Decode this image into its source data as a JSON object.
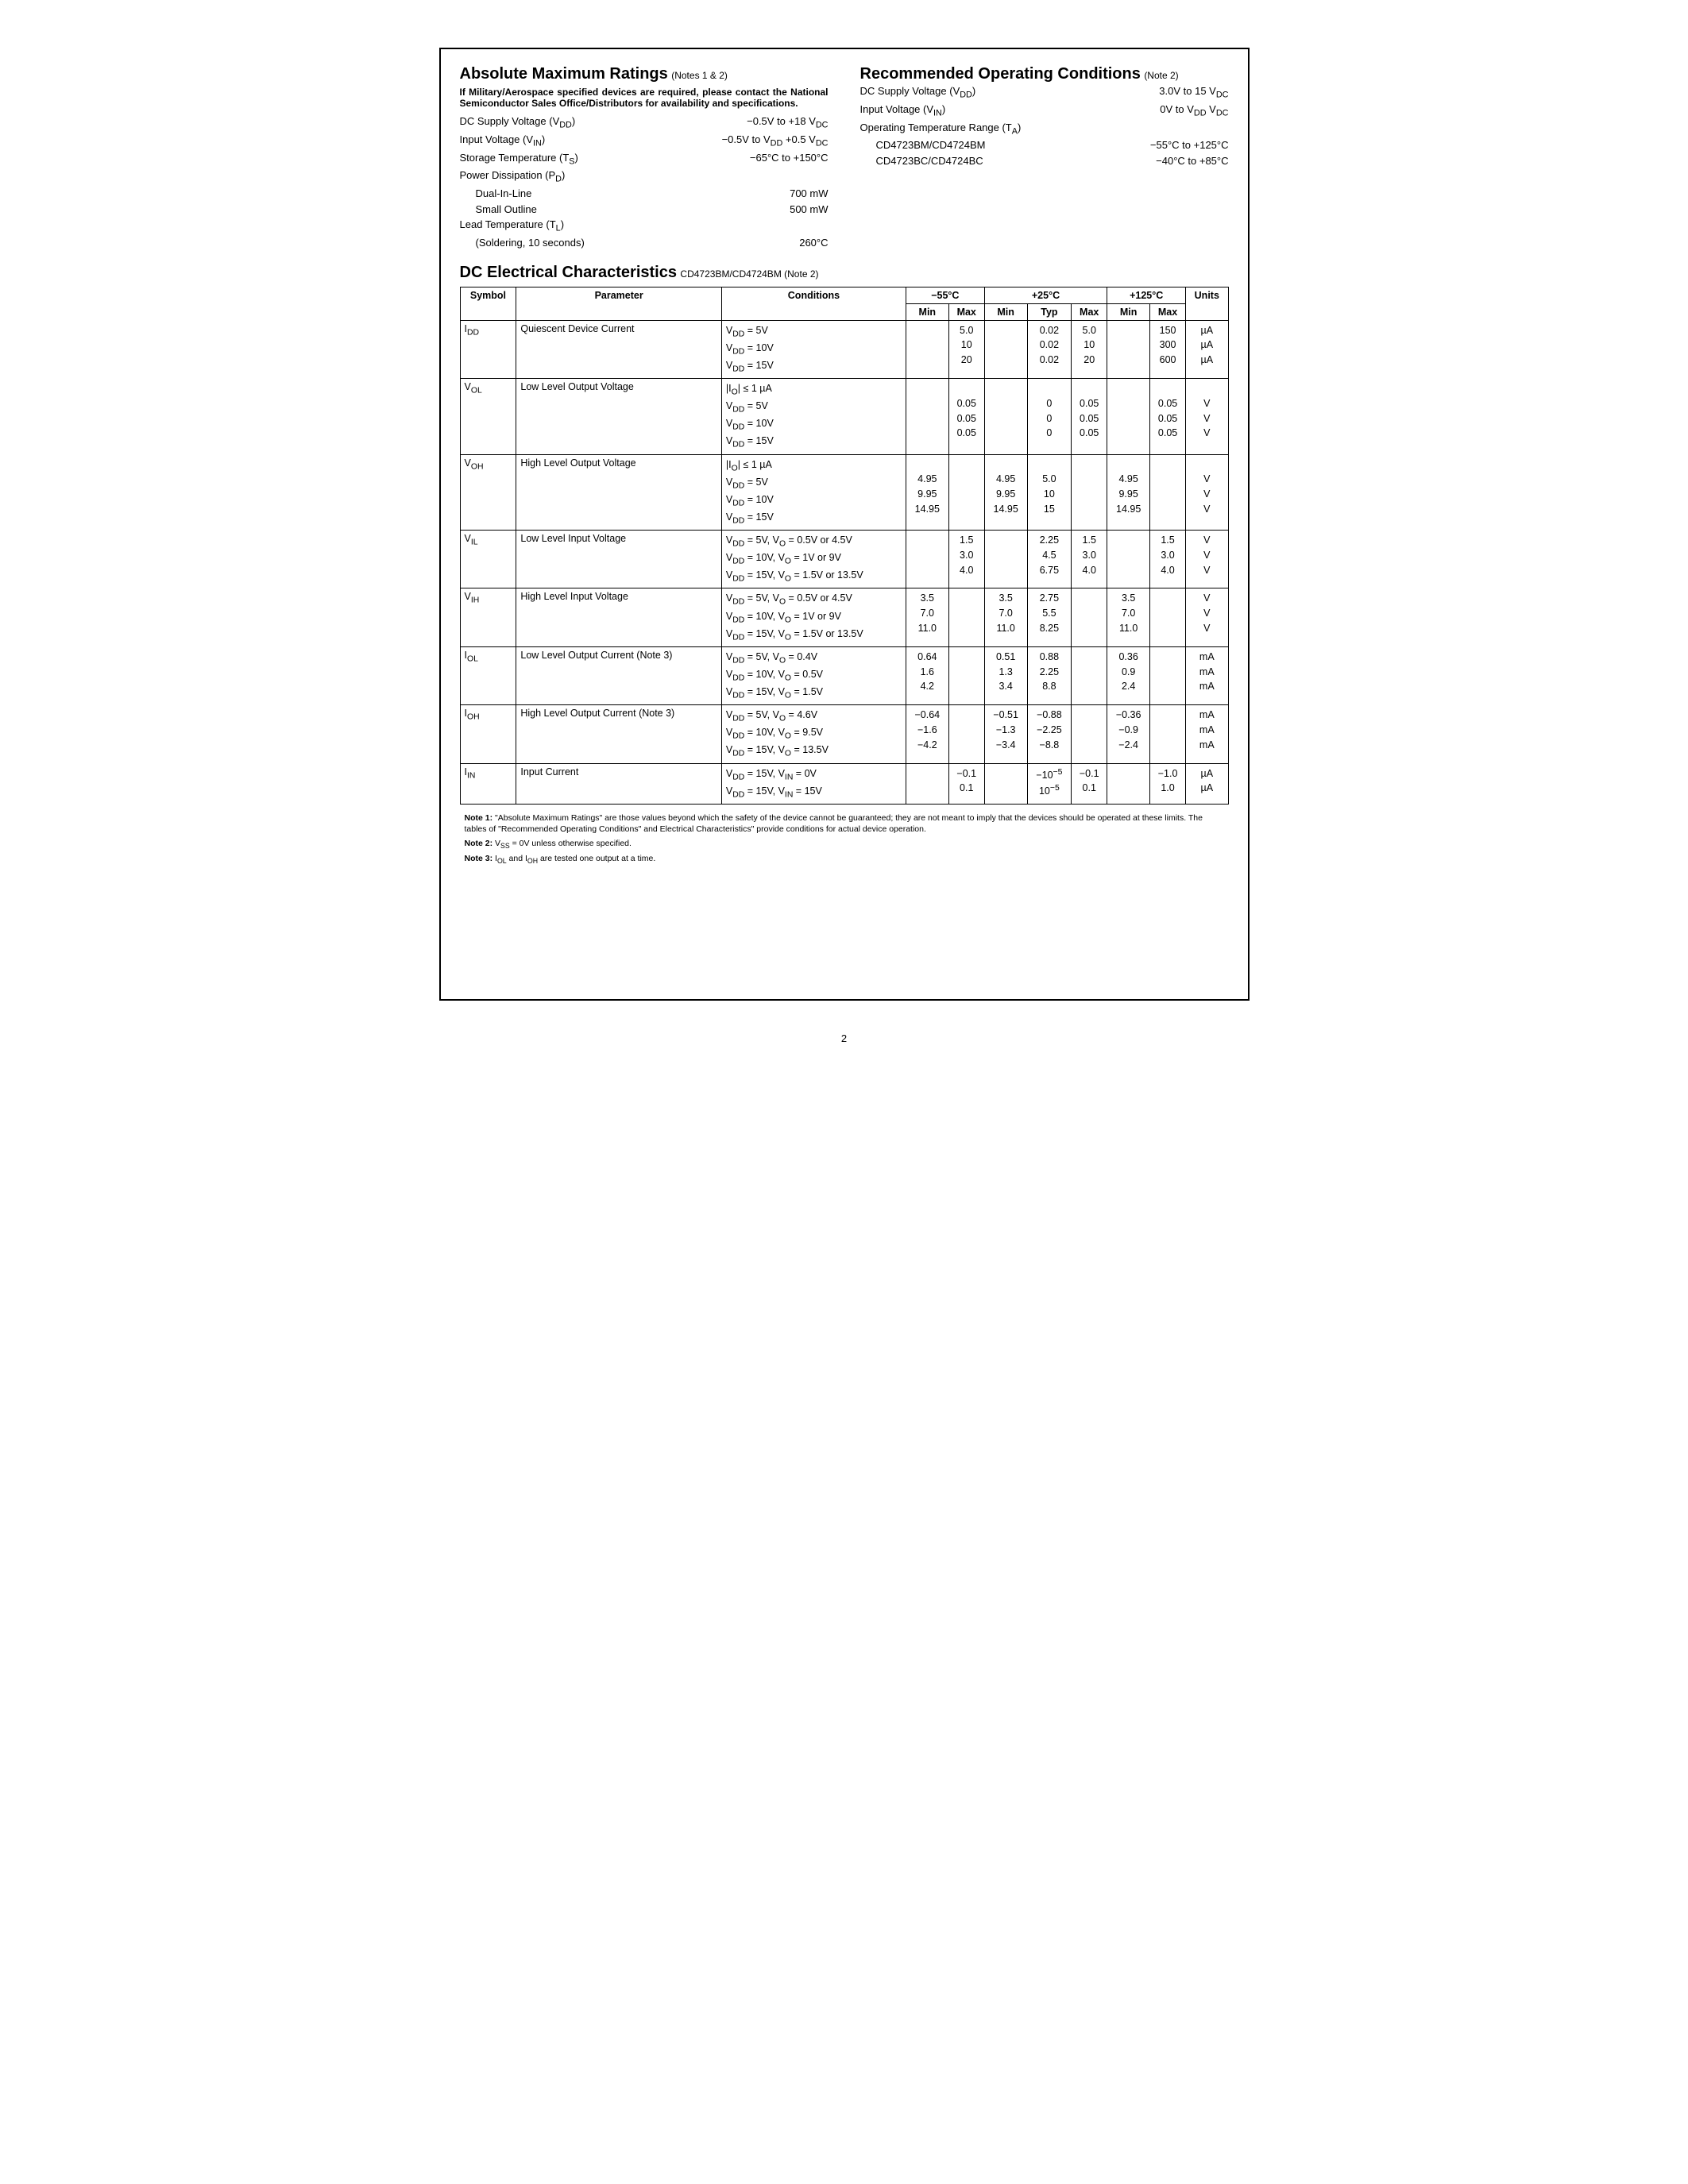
{
  "abs": {
    "title": "Absolute Maximum Ratings",
    "notesRef": "(Notes 1 & 2)",
    "boldNote": "If Military/Aerospace specified devices are required, please contact the National Semiconductor Sales Office/Distributors for availability and specifications.",
    "rows": [
      {
        "label": "DC Supply Voltage (V<sub>DD</sub>)",
        "value": "−0.5V to +18 V<sub>DC</sub>"
      },
      {
        "label": "Input Voltage (V<sub>IN</sub>)",
        "value": "−0.5V to V<sub>DD</sub> +0.5 V<sub>DC</sub>"
      },
      {
        "label": "Storage Temperature (T<sub>S</sub>)",
        "value": "−65°C to +150°C"
      },
      {
        "label": "Power Dissipation (P<sub>D</sub>)",
        "value": ""
      },
      {
        "label": "Dual-In-Line",
        "value": "700 mW",
        "indent": true
      },
      {
        "label": "Small Outline",
        "value": "500 mW",
        "indent": true
      },
      {
        "label": "Lead Temperature (T<sub>L</sub>)",
        "value": ""
      },
      {
        "label": "(Soldering, 10 seconds)",
        "value": "260°C",
        "indent": true
      }
    ]
  },
  "rec": {
    "title": "Recommended Operating Conditions",
    "notesRef": "(Note 2)",
    "rows": [
      {
        "label": "DC Supply Voltage (V<sub>DD</sub>)",
        "value": "3.0V to 15 V<sub>DC</sub>"
      },
      {
        "label": "Input Voltage (V<sub>IN</sub>)",
        "value": "0V to V<sub>DD</sub> V<sub>DC</sub>"
      },
      {
        "label": "Operating Temperature Range (T<sub>A</sub>)",
        "value": ""
      },
      {
        "label": "CD4723BM/CD4724BM",
        "value": "−55°C to +125°C",
        "indent": true
      },
      {
        "label": "CD4723BC/CD4724BC",
        "value": "−40°C to +85°C",
        "indent": true
      }
    ]
  },
  "dc": {
    "title": "DC Electrical Characteristics",
    "sub": "CD4723BM/CD4724BM (Note 2)",
    "tempHeaders": [
      "−55°C",
      "+25°C",
      "+125°C"
    ],
    "colHeaders": [
      "Symbol",
      "Parameter",
      "Conditions",
      "Min",
      "Max",
      "Min",
      "Typ",
      "Max",
      "Min",
      "Max",
      "Units"
    ],
    "rows": [
      {
        "symbol": "I<sub>DD</sub>",
        "param": "Quiescent Device Current",
        "cond": [
          "V<sub>DD</sub> = 5V",
          "V<sub>DD</sub> = 10V",
          "V<sub>DD</sub> = 15V"
        ],
        "c55min": [
          "",
          "",
          ""
        ],
        "c55max": [
          "5.0",
          "10",
          "20"
        ],
        "c25min": [
          "",
          "",
          ""
        ],
        "c25typ": [
          "0.02",
          "0.02",
          "0.02"
        ],
        "c25max": [
          "5.0",
          "10",
          "20"
        ],
        "c125min": [
          "",
          "",
          ""
        ],
        "c125max": [
          "150",
          "300",
          "600"
        ],
        "units": [
          "µA",
          "µA",
          "µA"
        ]
      },
      {
        "symbol": "V<sub>OL</sub>",
        "param": "Low Level Output Voltage",
        "cond": [
          "|I<sub>O</sub>| ≤ 1 µA",
          "V<sub>DD</sub> = 5V",
          "V<sub>DD</sub> = 10V",
          "V<sub>DD</sub> = 15V"
        ],
        "c55min": [
          "",
          "",
          "",
          ""
        ],
        "c55max": [
          "",
          "0.05",
          "0.05",
          "0.05"
        ],
        "c25min": [
          "",
          "",
          "",
          ""
        ],
        "c25typ": [
          "",
          "0",
          "0",
          "0"
        ],
        "c25max": [
          "",
          "0.05",
          "0.05",
          "0.05"
        ],
        "c125min": [
          "",
          "",
          "",
          ""
        ],
        "c125max": [
          "",
          "0.05",
          "0.05",
          "0.05"
        ],
        "units": [
          "",
          "V",
          "V",
          "V"
        ]
      },
      {
        "symbol": "V<sub>OH</sub>",
        "param": "High Level Output Voltage",
        "cond": [
          "|I<sub>O</sub>| ≤ 1 µA",
          "V<sub>DD</sub> = 5V",
          "V<sub>DD</sub> = 10V",
          "V<sub>DD</sub> = 15V"
        ],
        "c55min": [
          "",
          "4.95",
          "9.95",
          "14.95"
        ],
        "c55max": [
          "",
          "",
          "",
          ""
        ],
        "c25min": [
          "",
          "4.95",
          "9.95",
          "14.95"
        ],
        "c25typ": [
          "",
          "5.0",
          "10",
          "15"
        ],
        "c25max": [
          "",
          "",
          "",
          ""
        ],
        "c125min": [
          "",
          "4.95",
          "9.95",
          "14.95"
        ],
        "c125max": [
          "",
          "",
          "",
          ""
        ],
        "units": [
          "",
          "V",
          "V",
          "V"
        ]
      },
      {
        "symbol": "V<sub>IL</sub>",
        "param": "Low Level Input Voltage",
        "cond": [
          "V<sub>DD</sub> = 5V, V<sub>O</sub> = 0.5V or 4.5V",
          "V<sub>DD</sub> = 10V, V<sub>O</sub> = 1V or 9V",
          "V<sub>DD</sub> = 15V, V<sub>O</sub> = 1.5V or 13.5V"
        ],
        "c55min": [
          "",
          "",
          ""
        ],
        "c55max": [
          "1.5",
          "3.0",
          "4.0"
        ],
        "c25min": [
          "",
          "",
          ""
        ],
        "c25typ": [
          "2.25",
          "4.5",
          "6.75"
        ],
        "c25max": [
          "1.5",
          "3.0",
          "4.0"
        ],
        "c125min": [
          "",
          "",
          ""
        ],
        "c125max": [
          "1.5",
          "3.0",
          "4.0"
        ],
        "units": [
          "V",
          "V",
          "V"
        ]
      },
      {
        "symbol": "V<sub>IH</sub>",
        "param": "High Level Input Voltage",
        "cond": [
          "V<sub>DD</sub> = 5V, V<sub>O</sub> = 0.5V or 4.5V",
          "V<sub>DD</sub> = 10V, V<sub>O</sub> = 1V or 9V",
          "V<sub>DD</sub> = 15V, V<sub>O</sub> = 1.5V or 13.5V"
        ],
        "c55min": [
          "3.5",
          "7.0",
          "11.0"
        ],
        "c55max": [
          "",
          "",
          ""
        ],
        "c25min": [
          "3.5",
          "7.0",
          "11.0"
        ],
        "c25typ": [
          "2.75",
          "5.5",
          "8.25"
        ],
        "c25max": [
          "",
          "",
          ""
        ],
        "c125min": [
          "3.5",
          "7.0",
          "11.0"
        ],
        "c125max": [
          "",
          "",
          ""
        ],
        "units": [
          "V",
          "V",
          "V"
        ]
      },
      {
        "symbol": "I<sub>OL</sub>",
        "param": "Low Level Output Current (Note 3)",
        "cond": [
          "V<sub>DD</sub> = 5V, V<sub>O</sub> = 0.4V",
          "V<sub>DD</sub> = 10V, V<sub>O</sub> = 0.5V",
          "V<sub>DD</sub> = 15V, V<sub>O</sub> = 1.5V"
        ],
        "c55min": [
          "0.64",
          "1.6",
          "4.2"
        ],
        "c55max": [
          "",
          "",
          ""
        ],
        "c25min": [
          "0.51",
          "1.3",
          "3.4"
        ],
        "c25typ": [
          "0.88",
          "2.25",
          "8.8"
        ],
        "c25max": [
          "",
          "",
          ""
        ],
        "c125min": [
          "0.36",
          "0.9",
          "2.4"
        ],
        "c125max": [
          "",
          "",
          ""
        ],
        "units": [
          "mA",
          "mA",
          "mA"
        ]
      },
      {
        "symbol": "I<sub>OH</sub>",
        "param": "High Level Output Current (Note 3)",
        "cond": [
          "V<sub>DD</sub> = 5V, V<sub>O</sub> = 4.6V",
          "V<sub>DD</sub> = 10V, V<sub>O</sub> = 9.5V",
          "V<sub>DD</sub> = 15V, V<sub>O</sub> = 13.5V"
        ],
        "c55min": [
          "−0.64",
          "−1.6",
          "−4.2"
        ],
        "c55max": [
          "",
          "",
          ""
        ],
        "c25min": [
          "−0.51",
          "−1.3",
          "−3.4"
        ],
        "c25typ": [
          "−0.88",
          "−2.25",
          "−8.8"
        ],
        "c25max": [
          "",
          "",
          ""
        ],
        "c125min": [
          "−0.36",
          "−0.9",
          "−2.4"
        ],
        "c125max": [
          "",
          "",
          ""
        ],
        "units": [
          "mA",
          "mA",
          "mA"
        ]
      },
      {
        "symbol": "I<sub>IN</sub>",
        "param": "Input Current",
        "cond": [
          "V<sub>DD</sub> = 15V, V<sub>IN</sub> = 0V",
          "V<sub>DD</sub> = 15V, V<sub>IN</sub> = 15V"
        ],
        "c55min": [
          "",
          ""
        ],
        "c55max": [
          "−0.1",
          "0.1"
        ],
        "c25min": [
          "",
          ""
        ],
        "c25typ": [
          "−10<sup>−5</sup>",
          "10<sup>−5</sup>"
        ],
        "c25max": [
          "−0.1",
          "0.1"
        ],
        "c125min": [
          "",
          ""
        ],
        "c125max": [
          "−1.0",
          "1.0"
        ],
        "units": [
          "µA",
          "µA"
        ]
      }
    ]
  },
  "footnotes": [
    "<b>Note 1:</b> \"Absolute Maximum Ratings\" are those values beyond which the safety of the device cannot be guaranteed; they are not meant to imply that the devices should be operated at these limits. The tables of \"Recommended Operating Conditions\" and Electrical Characteristics\" provide conditions for actual device operation.",
    "<b>Note 2:</b> V<sub>SS</sub> = 0V unless otherwise specified.",
    "<b>Note 3:</b> I<sub>OL</sub> and I<sub>OH</sub> are tested one output at a time."
  ],
  "pageNumber": "2"
}
